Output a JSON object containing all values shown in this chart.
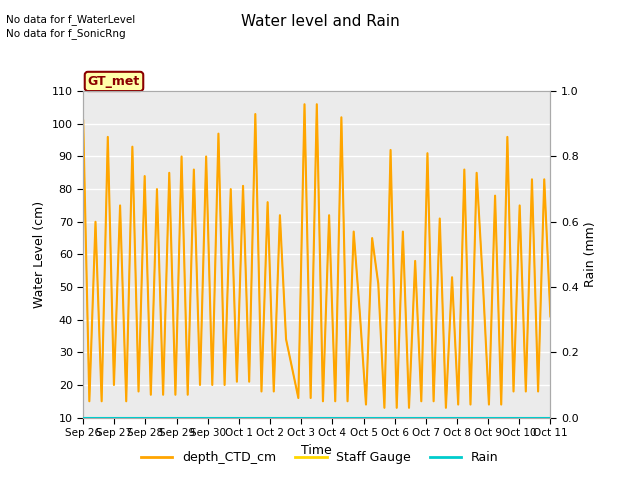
{
  "title": "Water level and Rain",
  "xlabel": "Time",
  "ylabel_left": "Water Level (cm)",
  "ylabel_right": "Rain (mm)",
  "annotation_line1": "No data for f_WaterLevel",
  "annotation_line2": "No data for f_SonicRng",
  "box_label": "GT_met",
  "ylim_left": [
    10,
    110
  ],
  "ylim_right": [
    0.0,
    1.0
  ],
  "yticks_left": [
    10,
    20,
    30,
    40,
    50,
    60,
    70,
    80,
    90,
    100,
    110
  ],
  "yticks_right": [
    0.0,
    0.2,
    0.4,
    0.6,
    0.8,
    1.0
  ],
  "xtick_labels": [
    "Sep 26",
    "Sep 27",
    "Sep 28",
    "Sep 29",
    "Sep 30",
    "Oct 1",
    "Oct 2",
    "Oct 3",
    "Oct 4",
    "Oct 5",
    "Oct 6",
    "Oct 7",
    "Oct 8",
    "Oct 9",
    "Oct 10",
    "Oct 11"
  ],
  "color_depth_CTD": "#FFA500",
  "color_staff_gauge": "#FFD700",
  "color_rain": "#00CCCC",
  "color_box_bg": "#FFFFAA",
  "color_box_border": "#8B0000",
  "color_box_text": "#8B0000",
  "bg_color": "#EBEBEB",
  "grid_color": "white",
  "depth_CTD_data": [
    101,
    15,
    70,
    15,
    96,
    20,
    75,
    15,
    93,
    18,
    84,
    17,
    80,
    17,
    85,
    17,
    90,
    17,
    86,
    20,
    90,
    20,
    97,
    20,
    80,
    21,
    81,
    21,
    103,
    18,
    76,
    18,
    72,
    34,
    25,
    16,
    106,
    16,
    106,
    15,
    72,
    15,
    102,
    15,
    67,
    42,
    14,
    65,
    51,
    13,
    92,
    13,
    67,
    13,
    58,
    15,
    91,
    15,
    71,
    13,
    53,
    14,
    86,
    14,
    85,
    52,
    14,
    78,
    14,
    96,
    18,
    75,
    18,
    83,
    18,
    83,
    41
  ]
}
